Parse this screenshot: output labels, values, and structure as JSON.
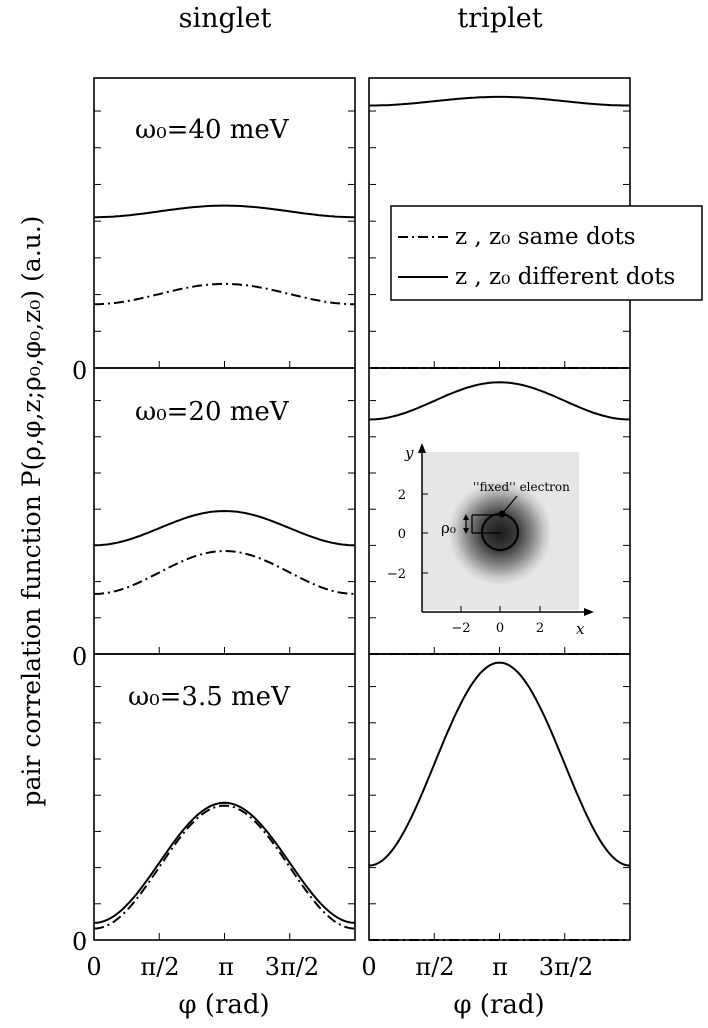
{
  "headers": {
    "left": "singlet",
    "right": "triplet"
  },
  "ylabel": "pair correlation function P(ρ,φ,z;ρ₀,φ₀,z₀)   (a.u.)",
  "xlabel": "φ (rad)",
  "zero_label": "0",
  "xticks": [
    "0",
    "π/2",
    "π",
    "3π/2"
  ],
  "legend": {
    "same": "z , z₀ same dots",
    "different": "z , z₀ different dots"
  },
  "inset": {
    "ylabel": "y",
    "xlabel": "x",
    "rho_label": "ρ₀",
    "annotation": "''fixed'' electron",
    "xticks": [
      "−2",
      "0",
      "2"
    ],
    "yticks": [
      "2",
      "0",
      "−2"
    ]
  },
  "chart_data": [
    {
      "type": "line",
      "column": "singlet",
      "row": 0,
      "annotation": "ω₀=40 meV",
      "xlim": [
        0,
        6.283
      ],
      "ylim": [
        0,
        1
      ],
      "series": [
        {
          "name": "z , z₀ different dots",
          "style": "solid",
          "min": 0.52,
          "max": 0.56
        },
        {
          "name": "z , z₀ same dots",
          "style": "dashdot",
          "min": 0.22,
          "max": 0.29
        }
      ]
    },
    {
      "type": "line",
      "column": "triplet",
      "row": 0,
      "xlim": [
        0,
        6.283
      ],
      "ylim": [
        0,
        1
      ],
      "series": [
        {
          "name": "z , z₀ different dots",
          "style": "solid",
          "min": 0.905,
          "max": 0.935
        },
        {
          "name": "z , z₀ same dots",
          "style": "dashdot",
          "min": 0.0,
          "max": 0.0
        }
      ]
    },
    {
      "type": "line",
      "column": "singlet",
      "row": 1,
      "annotation": "ω₀=20 meV",
      "xlim": [
        0,
        6.283
      ],
      "ylim": [
        0,
        1
      ],
      "series": [
        {
          "name": "z , z₀ different dots",
          "style": "solid",
          "min": 0.38,
          "max": 0.5
        },
        {
          "name": "z , z₀ same dots",
          "style": "dashdot",
          "min": 0.21,
          "max": 0.36
        }
      ]
    },
    {
      "type": "line",
      "column": "triplet",
      "row": 1,
      "xlim": [
        0,
        6.283
      ],
      "ylim": [
        0,
        1
      ],
      "series": [
        {
          "name": "z , z₀ different dots",
          "style": "solid",
          "min": 0.82,
          "max": 0.95
        },
        {
          "name": "z , z₀ same dots",
          "style": "dashdot",
          "min": 0.0,
          "max": 0.0
        }
      ]
    },
    {
      "type": "line",
      "column": "singlet",
      "row": 2,
      "annotation": "ω₀=3.5 meV",
      "xlim": [
        0,
        6.283
      ],
      "ylim": [
        0,
        1
      ],
      "series": [
        {
          "name": "z , z₀ different dots",
          "style": "solid",
          "min": 0.06,
          "max": 0.48
        },
        {
          "name": "z , z₀ same dots",
          "style": "dashdot",
          "min": 0.04,
          "max": 0.47
        }
      ]
    },
    {
      "type": "line",
      "column": "triplet",
      "row": 2,
      "xlim": [
        0,
        6.283
      ],
      "ylim": [
        0,
        1
      ],
      "series": [
        {
          "name": "z , z₀ different dots",
          "style": "solid",
          "min": 0.26,
          "max": 0.97
        },
        {
          "name": "z , z₀ same dots",
          "style": "dashdot",
          "min": 0.0,
          "max": 0.0
        }
      ]
    }
  ]
}
